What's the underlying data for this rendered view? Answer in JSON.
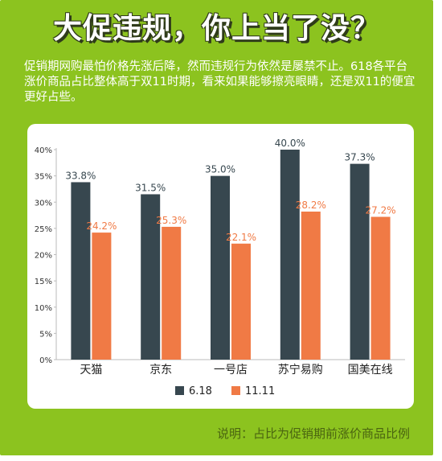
{
  "title": "大促违规，你上当了没？",
  "intro": "促销期网购最怕价格先涨后降，然而违规行为依然是屡禁不止。618各平台涨价商品占比整体高于双11时期，看来如果能够擦亮眼睛，还是双11的便宜更好占些。",
  "note": "说明：占比为促销期前涨价商品比例",
  "colors": {
    "s618": "#37474f",
    "s1111": "#f07a45",
    "background": "#8cc31f"
  },
  "chart_data": {
    "type": "bar",
    "categories": [
      "天猫",
      "京东",
      "一号店",
      "苏宁易购",
      "国美在线"
    ],
    "series": [
      {
        "name": "6.18",
        "values": [
          33.8,
          31.5,
          35.0,
          40.0,
          37.3
        ],
        "labels": [
          "33.8%",
          "31.5%",
          "35.0%",
          "40.0%",
          "37.3%"
        ]
      },
      {
        "name": "11.11",
        "values": [
          24.2,
          25.3,
          22.1,
          28.2,
          27.2
        ],
        "labels": [
          "24.2%",
          "25.3%",
          "22.1%",
          "28.2%",
          "27.2%"
        ]
      }
    ],
    "ylim": [
      0,
      40
    ],
    "yticks": [
      "0%",
      "5%",
      "10%",
      "15%",
      "20%",
      "25%",
      "30%",
      "35%",
      "40%"
    ],
    "grid": false,
    "legend": "bottom"
  }
}
